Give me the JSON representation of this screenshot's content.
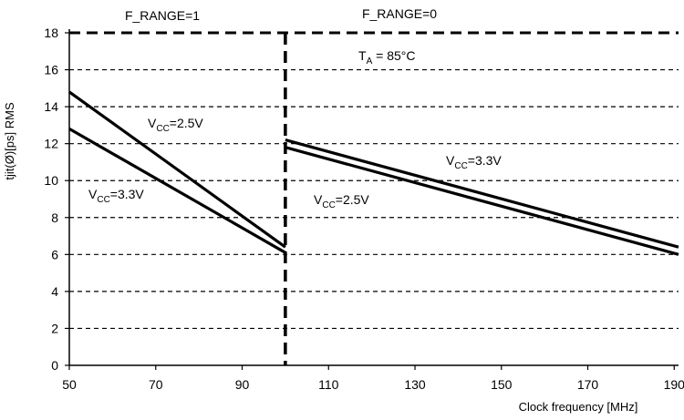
{
  "chart_data": {
    "type": "line",
    "xlabel": "Clock frequency [MHz]",
    "ylabel": "tjit(Ø)[ps] RMS",
    "xlim": [
      50,
      191
    ],
    "ylim": [
      0,
      18
    ],
    "x_ticks": [
      50,
      70,
      90,
      110,
      130,
      150,
      170,
      190
    ],
    "y_ticks": [
      0,
      2,
      4,
      6,
      8,
      10,
      12,
      14,
      16,
      18
    ],
    "grid": "horizontal dashed",
    "divider_x": 100,
    "regions": [
      {
        "label": "F_RANGE=1"
      },
      {
        "label": "F_RANGE=0"
      }
    ],
    "condition": {
      "main": "T",
      "sub": "A",
      "rest": " = 85°C"
    },
    "series": [
      {
        "name": "VCC=2.5V (F_RANGE=1)",
        "x": [
          50,
          100
        ],
        "y": [
          14.8,
          6.4
        ]
      },
      {
        "name": "VCC=3.3V (F_RANGE=1)",
        "x": [
          50,
          100
        ],
        "y": [
          12.8,
          6.1
        ]
      },
      {
        "name": "VCC=2.5V (F_RANGE=0)",
        "x": [
          100,
          191
        ],
        "y": [
          11.8,
          6.0
        ]
      },
      {
        "name": "VCC=3.3V (F_RANGE=0)",
        "x": [
          100,
          191
        ],
        "y": [
          12.2,
          6.4
        ]
      }
    ],
    "annotations": [
      {
        "main": "V",
        "sub": "CC",
        "rest": "=2.5V"
      },
      {
        "main": "V",
        "sub": "CC",
        "rest": "=3.3V"
      },
      {
        "main": "V",
        "sub": "CC",
        "rest": "=3.3V"
      },
      {
        "main": "V",
        "sub": "CC",
        "rest": "=2.5V"
      }
    ]
  }
}
